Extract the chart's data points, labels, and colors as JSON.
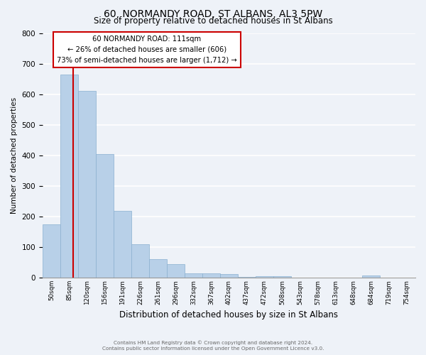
{
  "title": "60, NORMANDY ROAD, ST ALBANS, AL3 5PW",
  "subtitle": "Size of property relative to detached houses in St Albans",
  "xlabel": "Distribution of detached houses by size in St Albans",
  "ylabel": "Number of detached properties",
  "bar_labels": [
    "50sqm",
    "85sqm",
    "120sqm",
    "156sqm",
    "191sqm",
    "226sqm",
    "261sqm",
    "296sqm",
    "332sqm",
    "367sqm",
    "402sqm",
    "437sqm",
    "472sqm",
    "508sqm",
    "543sqm",
    "578sqm",
    "613sqm",
    "648sqm",
    "684sqm",
    "719sqm",
    "754sqm"
  ],
  "bar_values": [
    175,
    665,
    610,
    403,
    218,
    110,
    60,
    43,
    15,
    14,
    11,
    3,
    5,
    5,
    0,
    0,
    0,
    0,
    7,
    0,
    0
  ],
  "bar_color": "#b8d0e8",
  "bar_edge_color": "#8ab0d0",
  "background_color": "#eef2f8",
  "grid_color": "#ffffff",
  "property_line_color": "#cc0000",
  "annotation_text_line1": "60 NORMANDY ROAD: 111sqm",
  "annotation_text_line2": "← 26% of detached houses are smaller (606)",
  "annotation_text_line3": "73% of semi-detached houses are larger (1,712) →",
  "annotation_box_facecolor": "#ffffff",
  "annotation_box_edgecolor": "#cc0000",
  "ylim": [
    0,
    800
  ],
  "yticks": [
    0,
    100,
    200,
    300,
    400,
    500,
    600,
    700,
    800
  ],
  "footer_line1": "Contains HM Land Registry data © Crown copyright and database right 2024.",
  "footer_line2": "Contains public sector information licensed under the Open Government Licence v3.0."
}
